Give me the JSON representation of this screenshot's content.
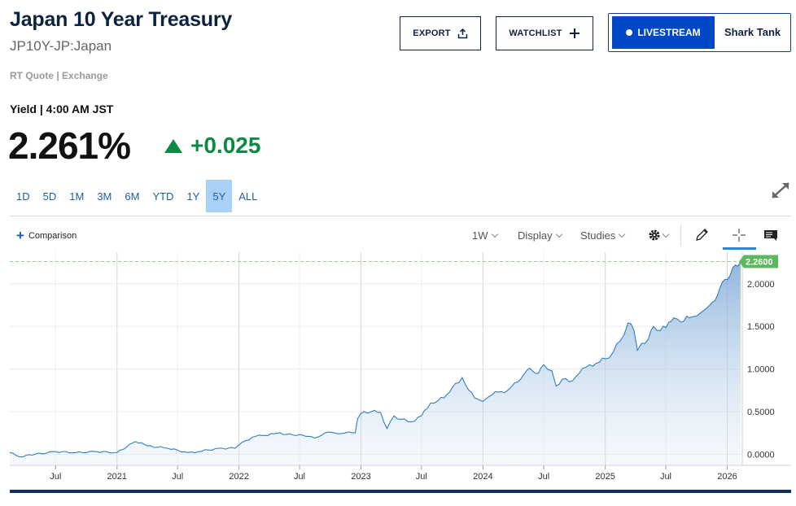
{
  "header": {
    "title": "Japan 10 Year Treasury",
    "symbol": "JP10Y-JP:Japan",
    "quote_source": "RT Quote | Exchange"
  },
  "actions": {
    "export_label": "EXPORT",
    "watchlist_label": "WATCHLIST",
    "livestream_label": "LIVESTREAM",
    "show_label": "Shark Tank"
  },
  "quote": {
    "yield_label": "Yield | 4:00 AM JST",
    "price": "2.261%",
    "change": "+0.025",
    "change_color": "#0a8a43"
  },
  "ranges": [
    "1D",
    "5D",
    "1M",
    "3M",
    "6M",
    "YTD",
    "1Y",
    "5Y",
    "ALL"
  ],
  "active_range": "5Y",
  "toolbar": {
    "comparison_label": "Comparison",
    "interval": "1W",
    "display_label": "Display",
    "studies_label": "Studies",
    "icons": [
      "gear-icon",
      "pencil-icon",
      "crosshair-icon",
      "news-icon"
    ]
  },
  "colors": {
    "brand": "#0c2340",
    "accent": "#0047c8",
    "line": "#2f7fc0",
    "badge": "#5cb85c"
  },
  "chart_data": {
    "type": "area",
    "xlabel": "",
    "ylabel": "",
    "x_tick_labels": [
      "Jul",
      "2021",
      "Jul",
      "2022",
      "Jul",
      "2023",
      "Jul",
      "2024",
      "Jul",
      "2025",
      "Jul",
      "2026"
    ],
    "y_tick_labels": [
      "0.0000",
      "0.5000",
      "1.0000",
      "1.5000",
      "2.0000"
    ],
    "ylim": [
      -0.13,
      2.37
    ],
    "xlim": [
      "2020-02-15",
      "2026-02-15"
    ],
    "last_value_label": "2.2600",
    "last_value": 2.26,
    "grid": true,
    "series": [
      {
        "x": [
          "2020-02-15",
          "2020-03-15",
          "2020-05-01",
          "2020-07-01",
          "2020-09-01",
          "2020-11-01",
          "2021-01-01",
          "2021-02-25",
          "2021-04-01",
          "2021-06-01",
          "2021-08-01",
          "2021-09-01",
          "2021-11-01",
          "2021-12-20",
          "2022-01-10",
          "2022-02-10",
          "2022-03-10",
          "2022-04-15",
          "2022-06-01",
          "2022-07-20",
          "2022-08-15",
          "2022-09-15",
          "2022-10-15",
          "2022-11-15",
          "2022-12-15",
          "2022-12-22",
          "2023-01-10",
          "2023-02-01",
          "2023-03-01",
          "2023-03-20",
          "2023-04-10",
          "2023-05-01",
          "2023-06-01",
          "2023-07-01",
          "2023-07-28",
          "2023-08-20",
          "2023-09-15",
          "2023-10-01",
          "2023-10-31",
          "2023-11-20",
          "2023-12-15",
          "2024-01-01",
          "2024-01-20",
          "2024-02-15",
          "2024-03-15",
          "2024-04-15",
          "2024-05-01",
          "2024-05-20",
          "2024-06-15",
          "2024-07-01",
          "2024-07-25",
          "2024-08-07",
          "2024-08-25",
          "2024-09-15",
          "2024-10-15",
          "2024-11-15",
          "2024-12-15",
          "2025-01-01",
          "2025-01-25",
          "2025-02-15",
          "2025-03-10",
          "2025-03-28",
          "2025-04-07",
          "2025-04-20",
          "2025-05-10",
          "2025-05-25",
          "2025-06-15",
          "2025-07-10",
          "2025-07-25",
          "2025-08-15",
          "2025-09-10",
          "2025-10-01",
          "2025-10-20",
          "2025-11-10",
          "2025-11-25",
          "2025-12-10",
          "2025-12-25",
          "2026-01-10",
          "2026-01-25",
          "2026-02-10"
        ],
        "y": [
          0.02,
          -0.03,
          0.0,
          0.03,
          0.02,
          0.03,
          0.02,
          0.15,
          0.1,
          0.07,
          0.02,
          0.03,
          0.07,
          0.07,
          0.14,
          0.2,
          0.22,
          0.24,
          0.24,
          0.21,
          0.19,
          0.25,
          0.25,
          0.25,
          0.25,
          0.42,
          0.5,
          0.5,
          0.49,
          0.3,
          0.45,
          0.41,
          0.38,
          0.45,
          0.6,
          0.63,
          0.7,
          0.78,
          0.9,
          0.75,
          0.65,
          0.62,
          0.68,
          0.73,
          0.75,
          0.85,
          0.93,
          1.01,
          0.95,
          1.05,
          0.98,
          0.8,
          0.88,
          0.85,
          0.95,
          1.05,
          1.08,
          1.12,
          1.2,
          1.33,
          1.54,
          1.45,
          1.22,
          1.3,
          1.35,
          1.5,
          1.45,
          1.55,
          1.6,
          1.55,
          1.6,
          1.62,
          1.68,
          1.75,
          1.8,
          1.95,
          2.05,
          2.1,
          2.22,
          2.26
        ]
      }
    ]
  }
}
